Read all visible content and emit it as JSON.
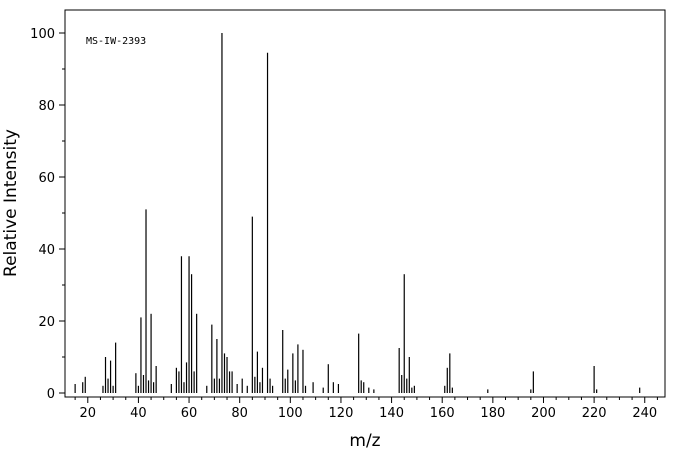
{
  "chart_data": {
    "type": "bar",
    "annotation": "MS-IW-2393",
    "xlabel": "m/z",
    "ylabel": "Relative Intensity",
    "x": [
      15,
      18,
      19,
      26,
      27,
      28,
      29,
      30,
      31,
      39,
      40,
      41,
      42,
      43,
      44,
      45,
      46,
      47,
      53,
      55,
      56,
      57,
      58,
      59,
      60,
      61,
      62,
      63,
      67,
      69,
      70,
      71,
      72,
      73,
      74,
      75,
      76,
      77,
      79,
      81,
      83,
      85,
      86,
      87,
      88,
      89,
      91,
      92,
      93,
      97,
      98,
      99,
      101,
      102,
      103,
      105,
      106,
      109,
      113,
      115,
      117,
      119,
      127,
      128,
      129,
      131,
      133,
      143,
      144,
      145,
      146,
      147,
      148,
      149,
      161,
      162,
      163,
      164,
      178,
      195,
      196,
      220,
      221,
      238
    ],
    "values": [
      2.5,
      3,
      4.5,
      2,
      10,
      4,
      9,
      2,
      14,
      5.5,
      2,
      21,
      5,
      51,
      3.5,
      22,
      3,
      7.5,
      2.5,
      7,
      6,
      38,
      3,
      8.5,
      38,
      33,
      6,
      22,
      2,
      19,
      4,
      15,
      4,
      100,
      11,
      10,
      6,
      6,
      2.5,
      4,
      2,
      49,
      4.5,
      11.5,
      3,
      7,
      94.5,
      4,
      2,
      17.5,
      4,
      6.5,
      11,
      3.5,
      13.5,
      12,
      2,
      3,
      1.5,
      8,
      3,
      2.5,
      16.5,
      3.5,
      3,
      1.5,
      1,
      12.5,
      5,
      33,
      4,
      10,
      1.5,
      2,
      2,
      7,
      11,
      1.5,
      1,
      1,
      6,
      7.5,
      1,
      1.5
    ],
    "color": "#000000",
    "xlim": [
      11,
      248
    ],
    "ylim": [
      0,
      105
    ],
    "xticks": [
      20,
      40,
      60,
      80,
      100,
      120,
      140,
      160,
      180,
      200,
      220,
      240
    ],
    "yticks": [
      0,
      20,
      40,
      60,
      80,
      100
    ],
    "xminorticks": [
      15,
      25,
      30,
      35,
      45,
      50,
      55,
      65,
      70,
      75,
      85,
      90,
      95,
      105,
      110,
      115,
      125,
      130,
      135,
      145,
      150,
      155,
      165,
      170,
      175,
      185,
      190,
      195,
      205,
      210,
      215,
      225,
      230,
      235,
      245
    ],
    "yminorticks": [
      10,
      30,
      50,
      70,
      90
    ]
  }
}
